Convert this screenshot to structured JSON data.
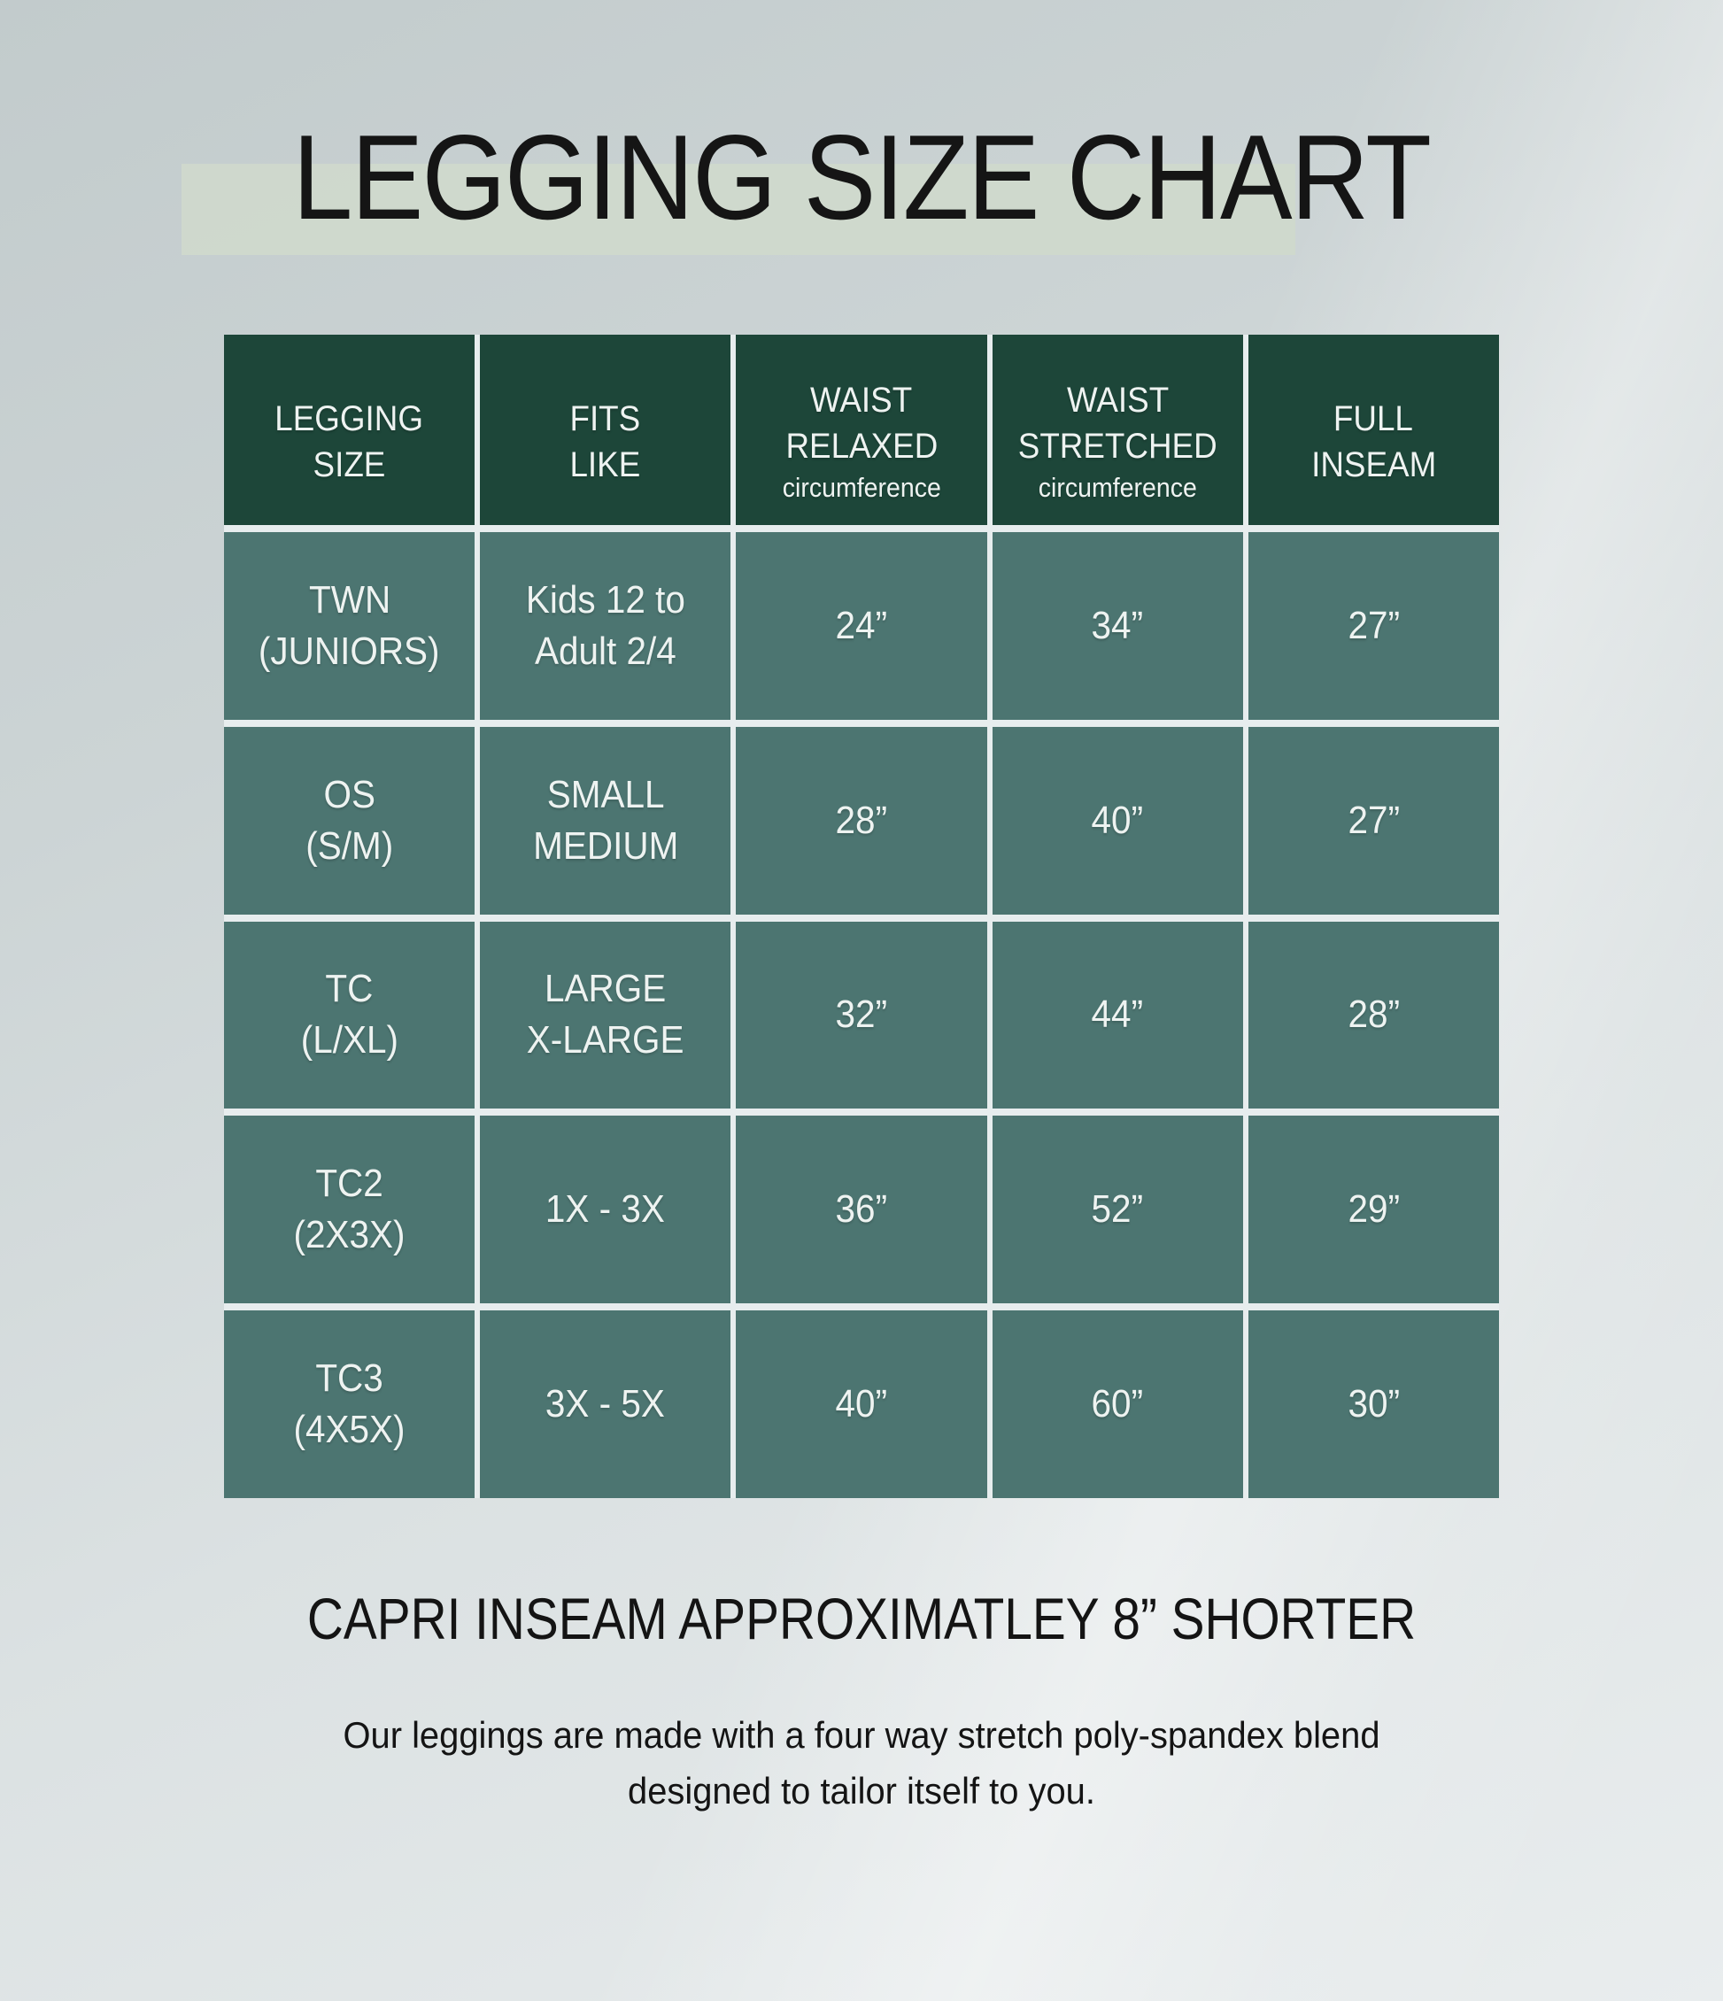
{
  "title": "LEGGING SIZE CHART",
  "table": {
    "headers": {
      "legging_size": {
        "line1": "LEGGING",
        "line2": "SIZE"
      },
      "fits_like": {
        "line1": "FITS",
        "line2": "LIKE"
      },
      "waist_relaxed": {
        "line1": "WAIST",
        "line2": "RELAXED",
        "sub": "circumference"
      },
      "waist_stretched": {
        "line1": "WAIST",
        "line2": "STRETCHED",
        "sub": "circumference"
      },
      "full_inseam": {
        "line1": "FULL",
        "line2": "INSEAM"
      }
    },
    "rows": [
      {
        "size1": "TWN",
        "size2": "(JUNIORS)",
        "fits1": "Kids 12 to",
        "fits2": "Adult 2/4",
        "relaxed": "24”",
        "stretched": "34”",
        "inseam": "27”"
      },
      {
        "size1": "OS",
        "size2": "(S/M)",
        "fits1": "SMALL",
        "fits2": "MEDIUM",
        "relaxed": "28”",
        "stretched": "40”",
        "inseam": "27”"
      },
      {
        "size1": "TC",
        "size2": "(L/XL)",
        "fits1": "LARGE",
        "fits2": "X-LARGE",
        "relaxed": "32”",
        "stretched": "44”",
        "inseam": "28”"
      },
      {
        "size1": "TC2",
        "size2": "(2X3X)",
        "fits1": "1X - 3X",
        "fits2": "",
        "relaxed": "36”",
        "stretched": "52”",
        "inseam": "29”"
      },
      {
        "size1": "TC3",
        "size2": "(4X5X)",
        "fits1": "3X - 5X",
        "fits2": "",
        "relaxed": "40”",
        "stretched": "60”",
        "inseam": "30”"
      }
    ]
  },
  "footer": {
    "capri_note": "CAPRI INSEAM APPROXIMATLEY 8” SHORTER",
    "description_line1": "Our leggings are made with a four way stretch poly-spandex blend",
    "description_line2": "designed to tailor itself to you."
  },
  "colors": {
    "header_green": "#1d4639",
    "body_green": "#4c7571",
    "grid_line": "#e7edee",
    "title_band": "#cfd9cc",
    "background_top": "#c2cbcc",
    "background_bottom": "#e9edee",
    "text_dark": "#141414",
    "text_light": "#eef3f1"
  }
}
